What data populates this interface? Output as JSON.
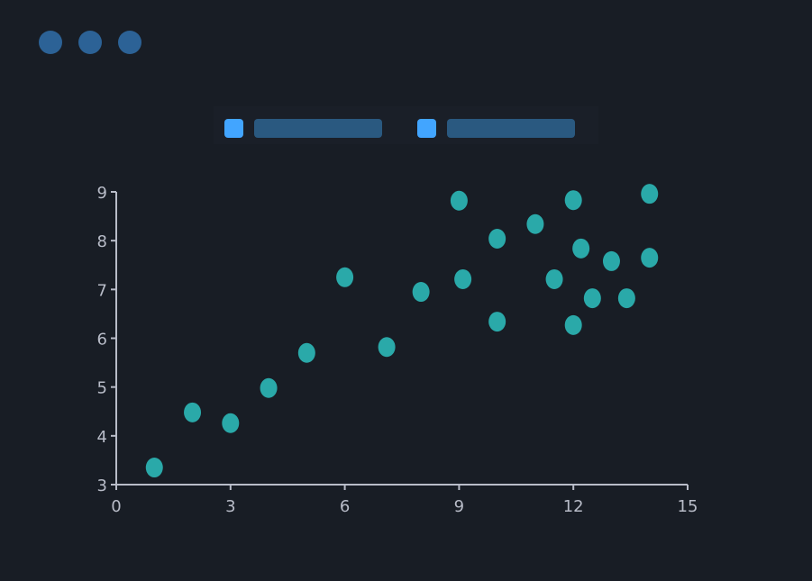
{
  "window_controls": {
    "color": "#2c6296",
    "count": 3
  },
  "legend": {
    "items": [
      {
        "swatch_color": "#42a5ff",
        "label_bar_color": "#2a5980"
      },
      {
        "swatch_color": "#42a5ff",
        "label_bar_color": "#2a5980"
      }
    ]
  },
  "chart_data": {
    "type": "scatter",
    "xlim": [
      0,
      15
    ],
    "ylim": [
      3,
      9
    ],
    "x_ticks": [
      "0",
      "3",
      "6",
      "9",
      "12",
      "15"
    ],
    "y_ticks": [
      "3",
      "4",
      "5",
      "6",
      "7",
      "8",
      "9"
    ],
    "grid": false,
    "legend_position": "top",
    "point_color": "#2aa9a9",
    "axis_color": "#b8bcc8",
    "series": [
      {
        "x": [
          1,
          2,
          3,
          4,
          5,
          6,
          7.1,
          8,
          9,
          9.1,
          10,
          10,
          11,
          11.5,
          12,
          12,
          12.2,
          12.5,
          13,
          13.4,
          14,
          14
        ],
        "y": [
          3.35,
          4.48,
          4.26,
          4.98,
          5.7,
          7.25,
          5.82,
          6.95,
          8.82,
          7.21,
          8.04,
          6.34,
          8.34,
          7.21,
          8.83,
          6.27,
          7.84,
          6.82,
          7.58,
          6.82,
          8.96,
          7.65
        ]
      }
    ]
  }
}
